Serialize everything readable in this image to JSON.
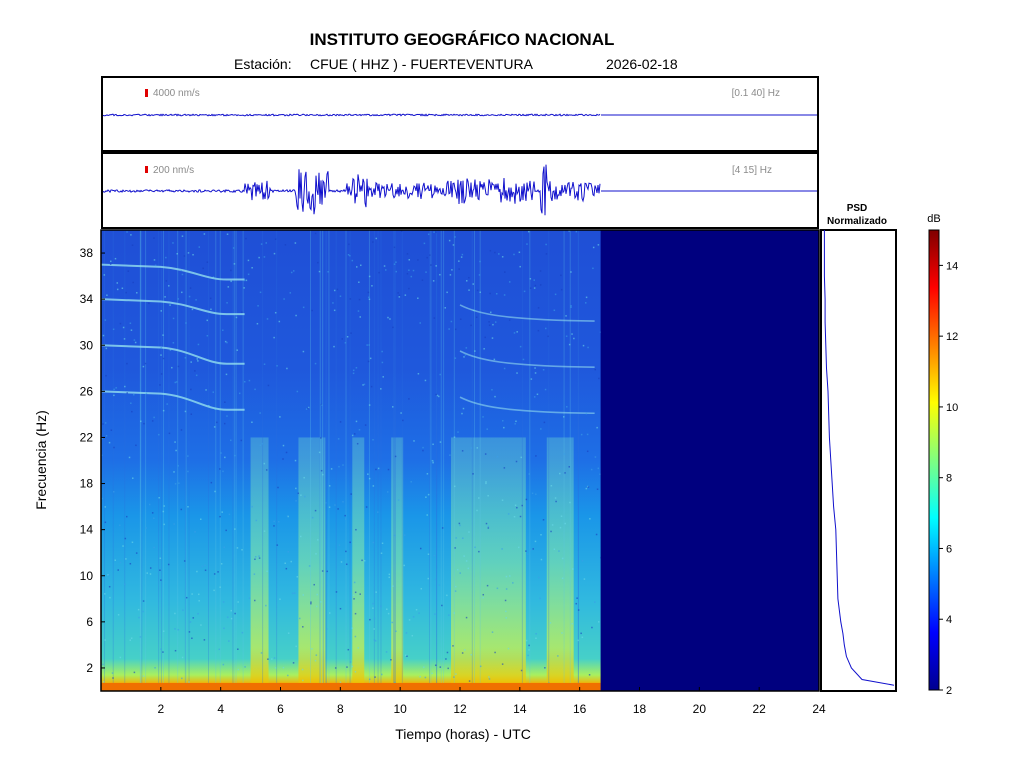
{
  "header": {
    "title": "INSTITUTO GEOGRÁFICO NACIONAL",
    "station_label": "Estación:",
    "station": "CFUE ( HHZ ) - FUERTEVENTURA",
    "date": "2026-02-18"
  },
  "traces": [
    {
      "scale_label": "4000 nm/s",
      "band_label": "[0.1 40] Hz"
    },
    {
      "scale_label": "200 nm/s",
      "band_label": "[4 15] Hz"
    }
  ],
  "psd_panel": {
    "title_line1": "PSD",
    "title_line2": "Normalizado"
  },
  "colors": {
    "trace": "#1010cc",
    "scale_marker": "#e00000",
    "no_data": "#00007f"
  },
  "chart_data": [
    {
      "type": "heatmap",
      "name": "spectrogram",
      "xlabel": "Tiempo (horas) - UTC",
      "ylabel": "Frecuencia  (Hz)",
      "xlim": [
        0,
        24
      ],
      "ylim": [
        0,
        40
      ],
      "xticks": [
        2,
        4,
        6,
        8,
        10,
        12,
        14,
        16,
        18,
        20,
        22,
        24
      ],
      "yticks": [
        2,
        6,
        10,
        14,
        18,
        22,
        26,
        30,
        34,
        38
      ],
      "data_end_hour": 16.7,
      "colormap": "jet",
      "colorbar": {
        "label": "dB",
        "range": [
          2,
          15
        ],
        "ticks": [
          2,
          4,
          6,
          8,
          10,
          12,
          14
        ]
      },
      "high_energy_bands_hours": [
        [
          5.0,
          5.6
        ],
        [
          6.6,
          7.5
        ],
        [
          8.4,
          8.8
        ],
        [
          9.7,
          10.1
        ],
        [
          11.7,
          14.2
        ],
        [
          14.9,
          15.8
        ]
      ],
      "tonal_lines_hz": [
        37,
        34,
        30,
        26
      ]
    },
    {
      "type": "line",
      "name": "normalized_psd",
      "title": "PSD Normalizado",
      "frequency_hz": [
        0.5,
        1,
        2,
        3,
        4,
        5,
        6,
        8,
        10,
        12,
        14,
        16,
        18,
        20,
        22,
        24,
        26,
        28,
        30,
        32,
        34,
        36,
        38,
        40
      ],
      "values": [
        1.0,
        0.55,
        0.4,
        0.33,
        0.3,
        0.28,
        0.25,
        0.21,
        0.2,
        0.19,
        0.18,
        0.15,
        0.13,
        0.11,
        0.09,
        0.08,
        0.07,
        0.05,
        0.04,
        0.03,
        0.03,
        0.02,
        0.02,
        0.02
      ],
      "ylim": [
        0,
        40
      ],
      "xlim": [
        0,
        1
      ]
    }
  ]
}
